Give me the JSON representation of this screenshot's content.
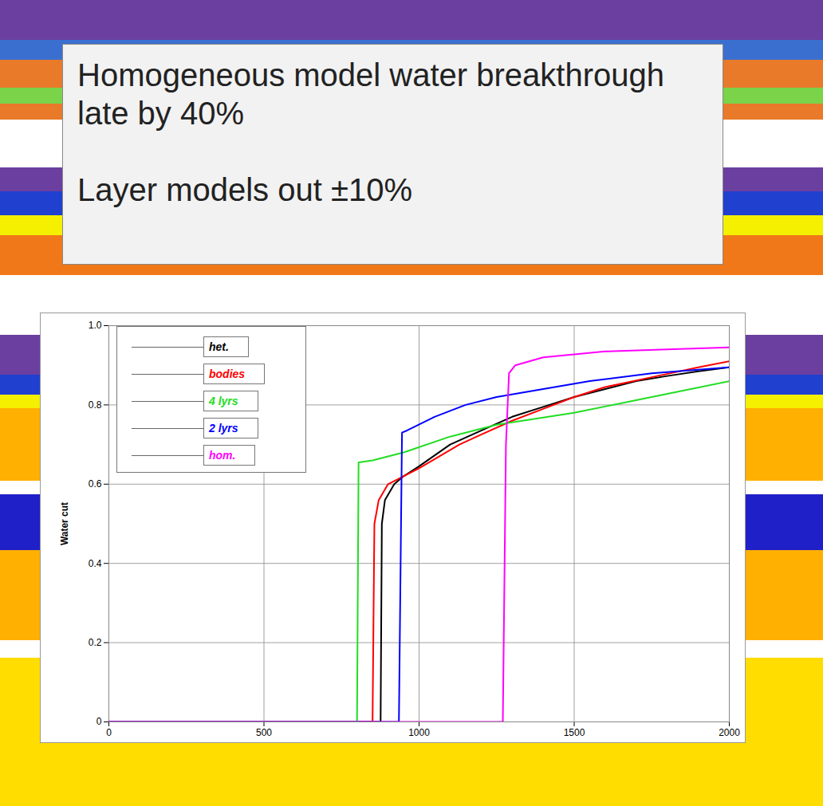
{
  "chart_data": {
    "type": "line",
    "annotations": [
      "Homogeneous model water breakthrough late by 40%",
      "Layer models out ±10%"
    ],
    "y_label": "Water cut",
    "xlim": [
      0,
      2000
    ],
    "xticks": [
      0,
      500,
      1000,
      1500,
      2000
    ],
    "ylim": [
      0,
      1
    ],
    "yticks": [
      0,
      0.2,
      0.4,
      0.6,
      0.8,
      {
        "value": 1,
        "label": "1.0"
      }
    ],
    "grid": true,
    "legend": "top-left",
    "series": [
      {
        "name": "het.",
        "color": "#000000",
        "x": [
          0,
          876,
          880,
          890,
          920,
          950,
          1000,
          1100,
          1200,
          1300,
          1400,
          1500,
          1600,
          1700,
          1800,
          1900,
          2000
        ],
        "values": [
          0,
          0,
          0.5,
          0.56,
          0.6,
          0.62,
          0.645,
          0.7,
          0.735,
          0.77,
          0.795,
          0.82,
          0.84,
          0.86,
          0.873,
          0.885,
          0.895
        ]
      },
      {
        "name": "bodies",
        "color": "#ff0000",
        "x": [
          0,
          850,
          856,
          870,
          900,
          950,
          1000,
          1130,
          1200,
          1300,
          1400,
          1500,
          1600,
          1750,
          1900,
          2000
        ],
        "values": [
          0,
          0,
          0.5,
          0.56,
          0.6,
          0.62,
          0.64,
          0.7,
          0.725,
          0.76,
          0.79,
          0.82,
          0.845,
          0.87,
          0.895,
          0.91
        ]
      },
      {
        "name": "4 lyrs",
        "color": "#22dd22",
        "x": [
          0,
          800,
          805,
          850,
          950,
          1100,
          1250,
          1500,
          1750,
          2000
        ],
        "values": [
          0,
          0,
          0.655,
          0.66,
          0.68,
          0.72,
          0.75,
          0.78,
          0.82,
          0.86
        ]
      },
      {
        "name": "2 lyrs",
        "color": "#0000ff",
        "x": [
          0,
          935,
          945,
          960,
          1050,
          1150,
          1250,
          1400,
          1550,
          1750,
          2000
        ],
        "values": [
          0,
          0,
          0.73,
          0.735,
          0.77,
          0.8,
          0.82,
          0.84,
          0.86,
          0.88,
          0.895
        ]
      },
      {
        "name": "hom.",
        "color": "#ff00ff",
        "x": [
          0,
          1270,
          1280,
          1290,
          1310,
          1400,
          1600,
          1800,
          2000
        ],
        "values": [
          0,
          0,
          0.7,
          0.88,
          0.9,
          0.92,
          0.935,
          0.94,
          0.945
        ]
      }
    ]
  }
}
